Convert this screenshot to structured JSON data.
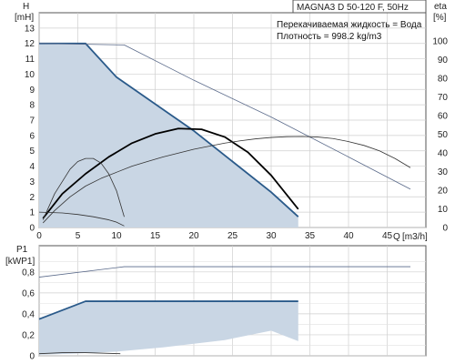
{
  "chart_data": [
    {
      "type": "line",
      "title": "MAGNA3 D 50-120 F, 50Hz",
      "notes": [
        "Перекачиваемая жидкость = Вода",
        "Плотность = 998.2 kg/m3"
      ],
      "ylabel": "H",
      "yunit": "[mH]",
      "y2label": "eta",
      "y2unit": "[%]",
      "xlabel": "Q",
      "xunit": "[m3/h]",
      "xlim": [
        0,
        50
      ],
      "ylim": [
        0,
        14
      ],
      "y2lim": [
        0,
        115
      ],
      "xticks": [
        0,
        5,
        10,
        15,
        20,
        25,
        30,
        35,
        40,
        45
      ],
      "yticks": [
        0,
        1,
        2,
        3,
        4,
        5,
        6,
        7,
        8,
        9,
        10,
        11,
        12,
        13
      ],
      "y2ticks": [
        0,
        10,
        20,
        30,
        40,
        50,
        60,
        70,
        80,
        90,
        100
      ],
      "grid": true,
      "operating_area": [
        [
          0,
          12.0
        ],
        [
          6,
          12.0
        ],
        [
          10,
          9.8
        ],
        [
          20,
          6.3
        ],
        [
          30,
          2.3
        ],
        [
          33.5,
          0.7
        ],
        [
          33.5,
          0
        ],
        [
          0,
          0
        ]
      ],
      "series": [
        {
          "axis": "y",
          "color": "#2a5a8a",
          "width": 1.8,
          "x": [
            0,
            6,
            10,
            20,
            30,
            33.5
          ],
          "y": [
            12.0,
            12.0,
            9.8,
            6.3,
            2.3,
            0.7
          ]
        },
        {
          "axis": "y",
          "color": "#5a6a8a",
          "width": 0.8,
          "x": [
            0,
            11,
            20,
            30,
            40,
            48
          ],
          "y": [
            12.0,
            11.9,
            9.6,
            7.2,
            4.6,
            2.5
          ]
        },
        {
          "axis": "y",
          "color": "#000000",
          "width": 1.8,
          "x": [
            0.5,
            3,
            6,
            9,
            12,
            15,
            18,
            21,
            24,
            27,
            30,
            33.5
          ],
          "y": [
            0.6,
            2.2,
            3.5,
            4.6,
            5.5,
            6.1,
            6.45,
            6.4,
            5.9,
            4.9,
            3.4,
            1.2
          ]
        },
        {
          "axis": "y",
          "color": "#333333",
          "width": 0.8,
          "x": [
            0.5,
            2,
            4,
            6,
            8,
            10,
            12,
            14,
            16,
            18,
            20,
            22,
            24,
            26,
            28,
            30,
            32,
            34,
            36,
            38,
            40,
            42,
            44,
            46,
            48
          ],
          "y": [
            0.3,
            1.1,
            2.0,
            2.7,
            3.2,
            3.6,
            4.0,
            4.3,
            4.6,
            4.85,
            5.1,
            5.3,
            5.5,
            5.65,
            5.78,
            5.87,
            5.92,
            5.93,
            5.9,
            5.8,
            5.6,
            5.35,
            5.0,
            4.5,
            3.9
          ]
        },
        {
          "axis": "y",
          "color": "#333333",
          "width": 0.8,
          "x": [
            0.5,
            2,
            4,
            5,
            6,
            7,
            8,
            9,
            10,
            11
          ],
          "y": [
            0.5,
            2.2,
            3.8,
            4.3,
            4.5,
            4.5,
            4.2,
            3.5,
            2.4,
            0.7
          ]
        },
        {
          "axis": "y",
          "color": "#333333",
          "width": 0.8,
          "x": [
            0,
            3,
            5,
            7,
            9,
            10,
            11
          ],
          "y": [
            1.0,
            0.95,
            0.85,
            0.7,
            0.5,
            0.35,
            0.1
          ]
        }
      ]
    },
    {
      "type": "line",
      "ylabel": "P1",
      "yunit": "[kWP1]",
      "xlim": [
        0,
        50
      ],
      "ylim": [
        0,
        1.05
      ],
      "yticks": [
        0,
        0.2,
        0.4,
        0.6,
        0.8
      ],
      "yticklabels": [
        "0",
        "0,2",
        "0,4",
        "0,6",
        "0,8"
      ],
      "grid": true,
      "area": [
        [
          0,
          0.35
        ],
        [
          6,
          0.52
        ],
        [
          33.5,
          0.52
        ],
        [
          33.5,
          0.14
        ],
        [
          30,
          0.24
        ],
        [
          24,
          0.15
        ],
        [
          16,
          0.08
        ],
        [
          10,
          0.04
        ],
        [
          4,
          0.02
        ],
        [
          0,
          0.01
        ]
      ],
      "series": [
        {
          "color": "#2a5a8a",
          "width": 1.8,
          "x": [
            0,
            6,
            33.5
          ],
          "y": [
            0.35,
            0.52,
            0.52
          ]
        },
        {
          "color": "#5a6a8a",
          "width": 0.8,
          "x": [
            0,
            11,
            48
          ],
          "y": [
            0.75,
            0.85,
            0.85
          ]
        },
        {
          "color": "#333333",
          "width": 0.8,
          "x": [
            0,
            3,
            6,
            10.5
          ],
          "y": [
            0.02,
            0.03,
            0.03,
            0.02
          ]
        }
      ]
    }
  ]
}
